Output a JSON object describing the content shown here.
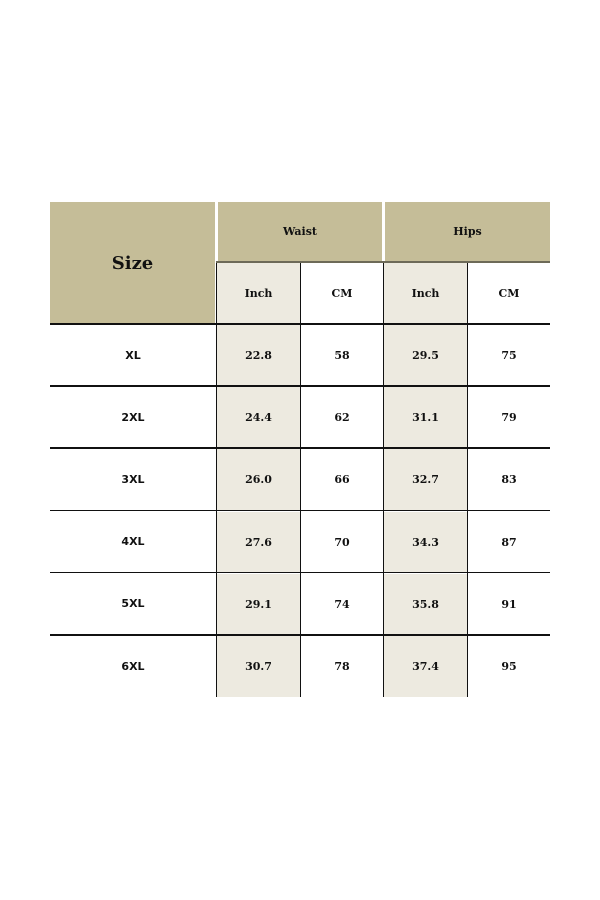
{
  "table": {
    "size_header": "Size",
    "groups": [
      "Waist",
      "Hips"
    ],
    "units": [
      "Inch",
      "CM",
      "Inch",
      "CM"
    ],
    "rows": [
      {
        "size": "XL",
        "values": [
          "22.8",
          "58",
          "29.5",
          "75"
        ]
      },
      {
        "size": "2XL",
        "values": [
          "24.4",
          "62",
          "31.1",
          "79"
        ]
      },
      {
        "size": "3XL",
        "values": [
          "26.0",
          "66",
          "32.7",
          "83"
        ]
      },
      {
        "size": "4XL",
        "values": [
          "27.6",
          "70",
          "34.3",
          "87"
        ]
      },
      {
        "size": "5XL",
        "values": [
          "29.1",
          "74",
          "35.8",
          "91"
        ]
      },
      {
        "size": "6XL",
        "values": [
          "30.7",
          "78",
          "37.4",
          "95"
        ]
      }
    ],
    "colors": {
      "header": "#c5bd98",
      "shaded_column": "#edeae0"
    }
  }
}
